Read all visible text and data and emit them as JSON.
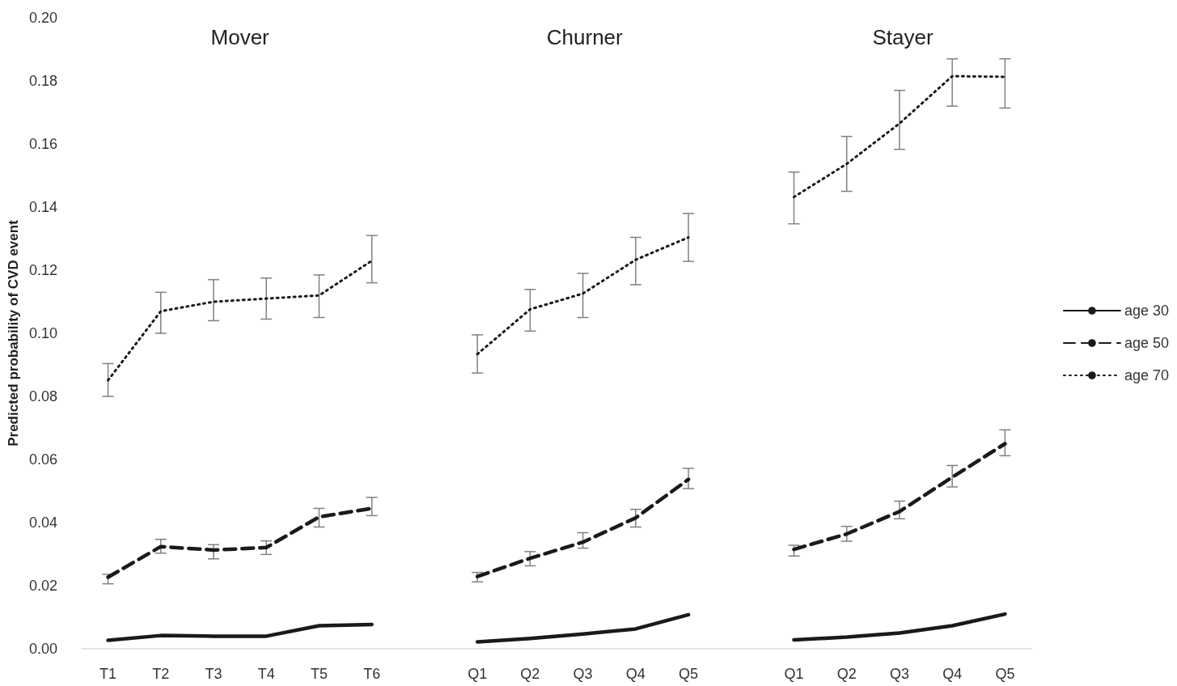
{
  "chart_data": {
    "type": "line",
    "annotations": [
      "Mover",
      "Churner",
      "Stayer"
    ],
    "ylabel": "Predicted probability of CVD event",
    "categories": [
      "T1",
      "T2",
      "T3",
      "T4",
      "T5",
      "T6",
      null,
      "Q1",
      "Q2",
      "Q3",
      "Q4",
      "Q5",
      null,
      "Q1",
      "Q2",
      "Q3",
      "Q4",
      "Q5"
    ],
    "series": [
      {
        "name": "age 30",
        "color": "#1a1a1a",
        "line_style": "solid",
        "values": [
          0.0027,
          0.0042,
          0.004,
          0.004,
          0.0073,
          0.0077,
          null,
          0.0022,
          0.0033,
          0.0047,
          0.0063,
          0.0108,
          null,
          0.0028,
          0.0037,
          0.005,
          0.0073,
          0.011
        ]
      },
      {
        "name": "age 50",
        "color": "#1a1a1a",
        "line_style": "dashed",
        "values": [
          0.0227,
          0.0324,
          0.0313,
          0.0321,
          0.0418,
          0.0445,
          null,
          0.0229,
          0.0287,
          0.0338,
          0.0415,
          0.0537,
          null,
          0.0315,
          0.0364,
          0.0435,
          0.0544,
          0.065
        ],
        "errors": [
          [
            0.0206,
            0.0236
          ],
          [
            0.0303,
            0.0347
          ],
          [
            0.0285,
            0.033
          ],
          [
            0.0299,
            0.0342
          ],
          [
            0.0386,
            0.0445
          ],
          [
            0.0422,
            0.048
          ],
          null,
          [
            0.0212,
            0.0242
          ],
          [
            0.0263,
            0.0308
          ],
          [
            0.0319,
            0.0368
          ],
          [
            0.0386,
            0.0442
          ],
          [
            0.0508,
            0.0572
          ],
          null,
          [
            0.0294,
            0.0328
          ],
          [
            0.0341,
            0.0388
          ],
          [
            0.0412,
            0.0468
          ],
          [
            0.0513,
            0.0581
          ],
          [
            0.0612,
            0.0694
          ]
        ]
      },
      {
        "name": "age 70",
        "color": "#1a1a1a",
        "line_style": "dotted",
        "values": [
          0.0851,
          0.107,
          0.11,
          0.111,
          0.112,
          0.123,
          null,
          0.0934,
          0.1076,
          0.1126,
          0.1233,
          0.1304,
          null,
          0.1432,
          0.1537,
          0.1665,
          0.1815,
          0.1813
        ],
        "errors": [
          [
            0.08,
            0.0904
          ],
          [
            0.1,
            0.113
          ],
          [
            0.104,
            0.117
          ],
          [
            0.1045,
            0.1175
          ],
          [
            0.105,
            0.1185
          ],
          [
            0.116,
            0.131
          ],
          null,
          [
            0.0874,
            0.0995
          ],
          [
            0.1007,
            0.1139
          ],
          [
            0.105,
            0.119
          ],
          [
            0.1154,
            0.1304
          ],
          [
            0.1228,
            0.138
          ],
          null,
          [
            0.1347,
            0.1511
          ],
          [
            0.145,
            0.1624
          ],
          [
            0.1583,
            0.177
          ],
          [
            0.172,
            0.187
          ],
          [
            0.1714,
            0.187
          ]
        ]
      }
    ],
    "ylim": [
      0,
      0.2
    ],
    "yticks": [
      {
        "value": 0,
        "label": "0.00"
      },
      {
        "value": 0.02,
        "label": "0.02"
      },
      {
        "value": 0.04,
        "label": "0.04"
      },
      {
        "value": 0.06,
        "label": "0.06"
      },
      {
        "value": 0.08,
        "label": "0.08"
      },
      {
        "value": 0.1,
        "label": "0.10"
      },
      {
        "value": 0.12,
        "label": "0.12"
      },
      {
        "value": 0.14,
        "label": "0.14"
      },
      {
        "value": 0.16,
        "label": "0.16"
      },
      {
        "value": 0.18,
        "label": "0.18"
      },
      {
        "value": 0.2,
        "label": "0.20"
      }
    ],
    "grid": false,
    "legend": "right",
    "marker": "none"
  }
}
